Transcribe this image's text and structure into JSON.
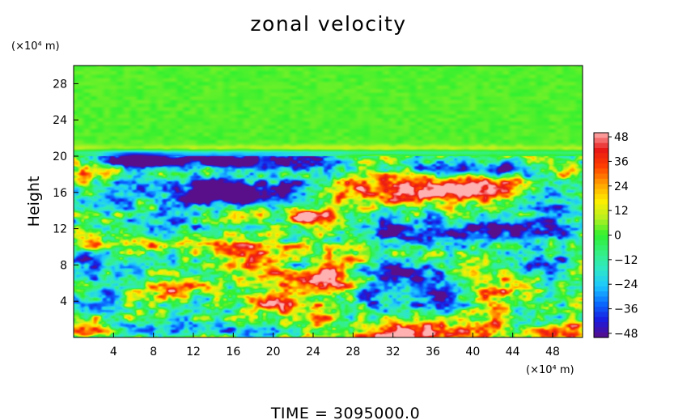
{
  "chart_data": {
    "type": "heatmap",
    "title": "zonal velocity",
    "ylabel": "Height",
    "y_unit": "(×10⁴ m)",
    "x_unit": "(×10⁴ m)",
    "xlim": [
      0,
      51
    ],
    "ylim": [
      0,
      30
    ],
    "x_ticks": [
      "4",
      "8",
      "12",
      "16",
      "20",
      "24",
      "28",
      "32",
      "36",
      "40",
      "44",
      "48"
    ],
    "y_ticks": [
      "4",
      "8",
      "12",
      "16",
      "20",
      "24",
      "28"
    ],
    "colorbar": {
      "min": -50,
      "max": 50,
      "ticks": [
        "48",
        "36",
        "24",
        "12",
        "0",
        "−12",
        "−24",
        "−36",
        "−48"
      ]
    },
    "colormap": [
      "#5a0f8a",
      "#1a1ae0",
      "#0a6cff",
      "#1ec8ff",
      "#2ee8c8",
      "#35f080",
      "#30f030",
      "#b8f020",
      "#ffee00",
      "#ffa000",
      "#ff4000",
      "#e81818",
      "#ffb0b0"
    ],
    "background_value": 2,
    "features": [
      {
        "x": 6,
        "y": 19.6,
        "sx": 2.5,
        "sy": 0.55,
        "v": -58
      },
      {
        "x": 12.5,
        "y": 19.5,
        "sx": 4.0,
        "sy": 0.5,
        "v": -50
      },
      {
        "x": 19,
        "y": 19.3,
        "sx": 3.0,
        "sy": 0.6,
        "v": -40
      },
      {
        "x": 25,
        "y": 19.3,
        "sx": 3.0,
        "sy": 0.6,
        "v": -28
      },
      {
        "x": 30,
        "y": 19.2,
        "sx": 3.0,
        "sy": 0.6,
        "v": 18
      },
      {
        "x": 35,
        "y": 19.0,
        "sx": 3.0,
        "sy": 0.6,
        "v": -22
      },
      {
        "x": 43,
        "y": 18.5,
        "sx": 4.0,
        "sy": 0.6,
        "v": -40
      },
      {
        "x": 49,
        "y": 18.0,
        "sx": 2.0,
        "sy": 0.6,
        "v": 28
      },
      {
        "x": 1.5,
        "y": 17.8,
        "sx": 1.5,
        "sy": 0.8,
        "v": 22
      },
      {
        "x": 35,
        "y": 16.3,
        "sx": 5.5,
        "sy": 1.1,
        "v": 60
      },
      {
        "x": 42,
        "y": 16.2,
        "sx": 3.0,
        "sy": 0.8,
        "v": 35
      },
      {
        "x": 27,
        "y": 16.0,
        "sx": 2.0,
        "sy": 0.8,
        "v": 20
      },
      {
        "x": 16,
        "y": 15.8,
        "sx": 2.5,
        "sy": 1.0,
        "v": -55
      },
      {
        "x": 12.5,
        "y": 16.2,
        "sx": 1.8,
        "sy": 1.0,
        "v": -45
      },
      {
        "x": 21.5,
        "y": 16.3,
        "sx": 2.2,
        "sy": 0.9,
        "v": -50
      },
      {
        "x": 5,
        "y": 16.0,
        "sx": 3.0,
        "sy": 1.2,
        "v": -25
      },
      {
        "x": 47.5,
        "y": 15.5,
        "sx": 2.5,
        "sy": 1.2,
        "v": -30
      },
      {
        "x": 23.5,
        "y": 13.4,
        "sx": 1.6,
        "sy": 0.55,
        "v": 55
      },
      {
        "x": 17,
        "y": 13.5,
        "sx": 2.0,
        "sy": 0.8,
        "v": 18
      },
      {
        "x": 10,
        "y": 13.0,
        "sx": 3.0,
        "sy": 1.0,
        "v": -20
      },
      {
        "x": 38,
        "y": 11.5,
        "sx": 6.0,
        "sy": 1.0,
        "v": -42
      },
      {
        "x": 30.5,
        "y": 12.0,
        "sx": 2.0,
        "sy": 1.0,
        "v": -25
      },
      {
        "x": 47,
        "y": 12.0,
        "sx": 3.0,
        "sy": 1.0,
        "v": -22
      },
      {
        "x": 26.5,
        "y": 12.5,
        "sx": 2.0,
        "sy": 1.0,
        "v": 25
      },
      {
        "x": 12,
        "y": 10.2,
        "sx": 7.0,
        "sy": 0.4,
        "v": 28
      },
      {
        "x": 3,
        "y": 10.5,
        "sx": 3.0,
        "sy": 0.5,
        "v": 15
      },
      {
        "x": 27.5,
        "y": 9.0,
        "sx": 2.0,
        "sy": 0.6,
        "v": 20
      },
      {
        "x": 17,
        "y": 8.5,
        "sx": 2.0,
        "sy": 1.2,
        "v": 30
      },
      {
        "x": 20.5,
        "y": 8.0,
        "sx": 1.5,
        "sy": 1.2,
        "v": 22
      },
      {
        "x": 32.5,
        "y": 7.3,
        "sx": 2.5,
        "sy": 0.7,
        "v": -50
      },
      {
        "x": 22,
        "y": 8.0,
        "sx": 1.5,
        "sy": 0.6,
        "v": -40
      },
      {
        "x": 24,
        "y": 7.0,
        "sx": 2.0,
        "sy": 1.2,
        "v": 30
      },
      {
        "x": 26,
        "y": 6.2,
        "sx": 2.0,
        "sy": 1.0,
        "v": 32
      },
      {
        "x": 40,
        "y": 7.5,
        "sx": 2.0,
        "sy": 1.0,
        "v": 25
      },
      {
        "x": 47,
        "y": 8.0,
        "sx": 2.5,
        "sy": 1.0,
        "v": -35
      },
      {
        "x": 1,
        "y": 8.0,
        "sx": 1.5,
        "sy": 1.0,
        "v": -35
      },
      {
        "x": 10,
        "y": 5.5,
        "sx": 1.8,
        "sy": 0.9,
        "v": 35
      },
      {
        "x": 6,
        "y": 7.5,
        "sx": 2.5,
        "sy": 1.2,
        "v": -12
      },
      {
        "x": 20,
        "y": 4.0,
        "sx": 1.8,
        "sy": 0.8,
        "v": 55
      },
      {
        "x": 30,
        "y": 4.5,
        "sx": 2.0,
        "sy": 1.5,
        "v": -32
      },
      {
        "x": 36,
        "y": 5.0,
        "sx": 2.5,
        "sy": 1.8,
        "v": -40
      },
      {
        "x": 43,
        "y": 5.0,
        "sx": 2.0,
        "sy": 1.2,
        "v": 30
      },
      {
        "x": 46,
        "y": 3.5,
        "sx": 2.0,
        "sy": 1.5,
        "v": -22
      },
      {
        "x": 2,
        "y": 4.5,
        "sx": 2.5,
        "sy": 1.5,
        "v": -18
      },
      {
        "x": 14,
        "y": 3.0,
        "sx": 3.0,
        "sy": 1.5,
        "v": -15
      },
      {
        "x": 25,
        "y": 2.5,
        "sx": 2.0,
        "sy": 1.2,
        "v": 24
      },
      {
        "x": 33.5,
        "y": 0.4,
        "sx": 4.0,
        "sy": 0.7,
        "v": 60
      },
      {
        "x": 49.5,
        "y": 0.6,
        "sx": 1.8,
        "sy": 0.6,
        "v": 45
      },
      {
        "x": 1.5,
        "y": 0.8,
        "sx": 2.0,
        "sy": 0.8,
        "v": 25
      },
      {
        "x": 7,
        "y": 1.0,
        "sx": 3.0,
        "sy": 0.6,
        "v": -30
      },
      {
        "x": 17,
        "y": 0.8,
        "sx": 3.0,
        "sy": 0.6,
        "v": -25
      },
      {
        "x": 28,
        "y": 1.0,
        "sx": 2.0,
        "sy": 0.8,
        "v": -10
      },
      {
        "x": 41,
        "y": 1.2,
        "sx": 3.0,
        "sy": 0.8,
        "v": 20
      },
      {
        "x": 25.5,
        "y": 20.9,
        "sx": 26.0,
        "sy": 0.25,
        "v": 8
      },
      {
        "x": 25.5,
        "y": 20.4,
        "sx": 26.0,
        "sy": 0.18,
        "v": -14
      }
    ]
  },
  "footer": {
    "time_text": "TIME = 3095000.0"
  }
}
